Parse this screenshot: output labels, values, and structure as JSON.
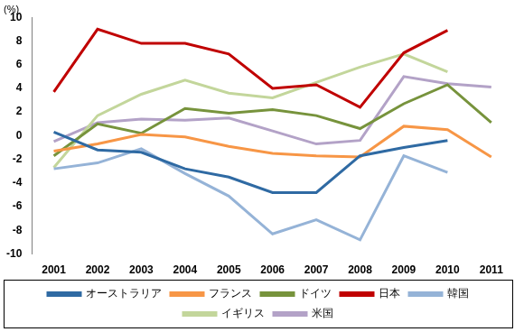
{
  "chart_data": {
    "type": "line",
    "y_label": "(%)",
    "categories": [
      "2001",
      "2002",
      "2003",
      "2004",
      "2005",
      "2006",
      "2007",
      "2008",
      "2009",
      "2010",
      "2011"
    ],
    "series": [
      {
        "name": "オーストラリア",
        "color": "#2f6aa3",
        "values": [
          0.3,
          -1.2,
          -1.4,
          -2.8,
          -3.5,
          -4.8,
          -4.8,
          -1.7,
          -1.0,
          -0.4,
          null
        ]
      },
      {
        "name": "フランス",
        "color": "#f79646",
        "values": [
          -1.3,
          -0.7,
          0.1,
          -0.1,
          -0.9,
          -1.5,
          -1.7,
          -1.8,
          0.8,
          0.5,
          -1.8
        ]
      },
      {
        "name": "ドイツ",
        "color": "#77933c",
        "values": [
          -1.7,
          1.0,
          0.2,
          2.3,
          1.9,
          2.2,
          1.7,
          0.6,
          2.7,
          4.3,
          1.1
        ]
      },
      {
        "name": "日本",
        "color": "#c00000",
        "values": [
          3.7,
          9.0,
          7.8,
          7.8,
          6.9,
          4.0,
          4.3,
          2.4,
          7.0,
          8.9,
          null
        ]
      },
      {
        "name": "韓国",
        "color": "#95b3d7",
        "values": [
          -2.8,
          -2.3,
          -1.1,
          -3.2,
          -5.1,
          -8.3,
          -7.1,
          -8.8,
          -1.7,
          -3.1,
          null
        ]
      },
      {
        "name": "イギリス",
        "color": "#c3d69b",
        "values": [
          -2.7,
          1.7,
          3.5,
          4.7,
          3.6,
          3.2,
          4.5,
          5.8,
          6.9,
          5.4,
          null
        ]
      },
      {
        "name": "米国",
        "color": "#b3a2c7",
        "values": [
          -0.5,
          1.1,
          1.4,
          1.3,
          1.5,
          0.4,
          -0.7,
          -0.4,
          5.0,
          4.4,
          4.1
        ]
      }
    ],
    "ylim": [
      -10,
      10
    ],
    "yticks": [
      -10,
      -8,
      -6,
      -4,
      -2,
      0,
      2,
      4,
      6,
      8,
      10
    ],
    "grid": false,
    "legend": "bottom",
    "marker": "none",
    "line_style": "solid"
  }
}
